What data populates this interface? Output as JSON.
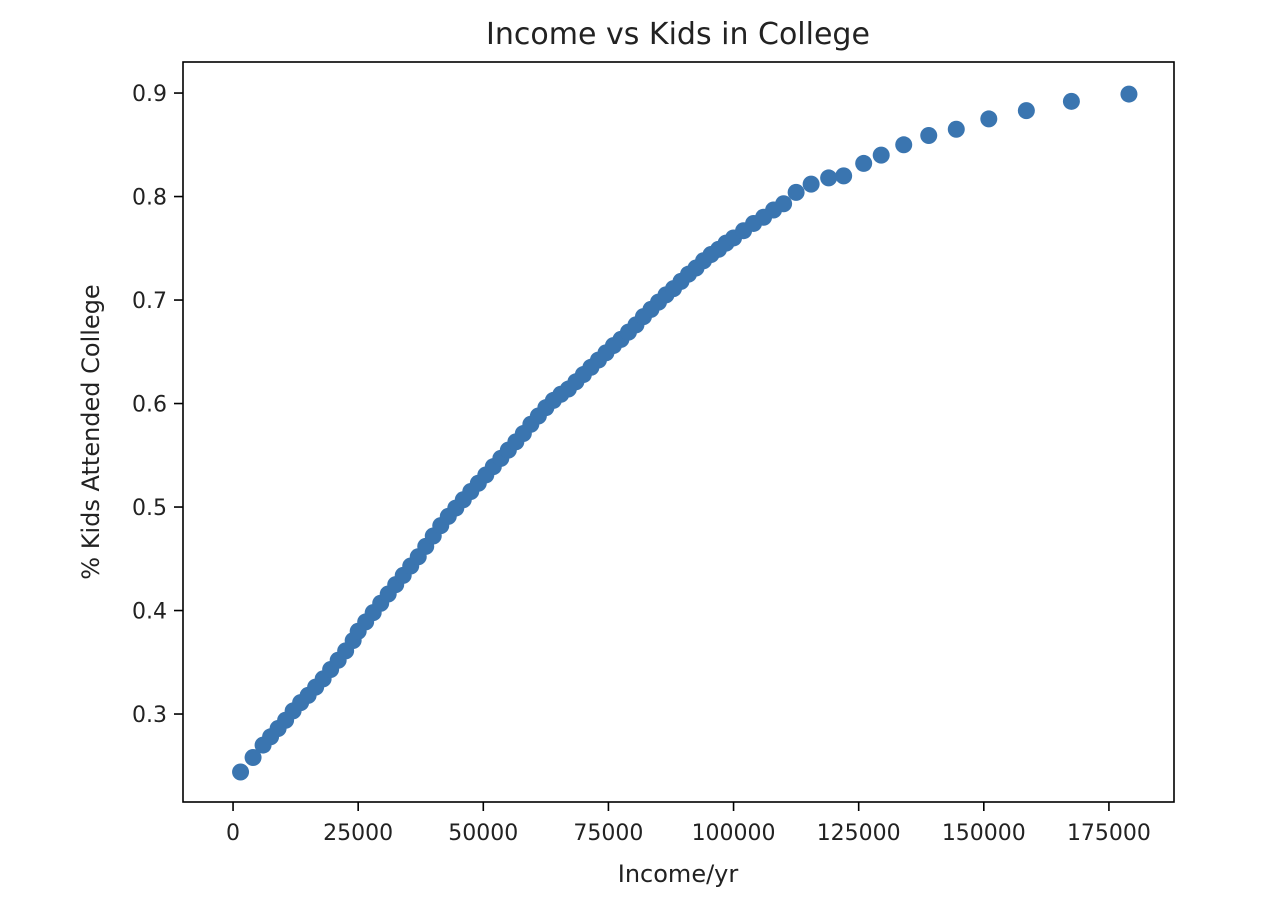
{
  "chart_data": {
    "type": "scatter",
    "title": "Income vs Kids in College",
    "xlabel": "Income/yr",
    "ylabel": "% Kids Attended College",
    "xlim": [
      -10000,
      188000
    ],
    "ylim": [
      0.215,
      0.93
    ],
    "xticks": [
      {
        "value": 0,
        "label": "0"
      },
      {
        "value": 25000,
        "label": "25000"
      },
      {
        "value": 50000,
        "label": "50000"
      },
      {
        "value": 75000,
        "label": "75000"
      },
      {
        "value": 100000,
        "label": "100000"
      },
      {
        "value": 125000,
        "label": "125000"
      },
      {
        "value": 150000,
        "label": "150000"
      },
      {
        "value": 175000,
        "label": "175000"
      }
    ],
    "yticks": [
      {
        "value": 0.3,
        "label": "0.3"
      },
      {
        "value": 0.4,
        "label": "0.4"
      },
      {
        "value": 0.5,
        "label": "0.5"
      },
      {
        "value": 0.6,
        "label": "0.6"
      },
      {
        "value": 0.7,
        "label": "0.7"
      },
      {
        "value": 0.8,
        "label": "0.8"
      },
      {
        "value": 0.9,
        "label": "0.9"
      }
    ],
    "grid": false,
    "marker_color": "#3a75b0",
    "points": [
      [
        1500,
        0.244
      ],
      [
        4000,
        0.258
      ],
      [
        6000,
        0.27
      ],
      [
        7500,
        0.278
      ],
      [
        9000,
        0.286
      ],
      [
        10500,
        0.294
      ],
      [
        12000,
        0.303
      ],
      [
        13500,
        0.311
      ],
      [
        15000,
        0.318
      ],
      [
        16500,
        0.326
      ],
      [
        18000,
        0.334
      ],
      [
        19500,
        0.343
      ],
      [
        21000,
        0.352
      ],
      [
        22500,
        0.361
      ],
      [
        24000,
        0.371
      ],
      [
        25000,
        0.38
      ],
      [
        26500,
        0.389
      ],
      [
        28000,
        0.398
      ],
      [
        29500,
        0.407
      ],
      [
        31000,
        0.416
      ],
      [
        32500,
        0.425
      ],
      [
        34000,
        0.434
      ],
      [
        35500,
        0.443
      ],
      [
        37000,
        0.452
      ],
      [
        38500,
        0.462
      ],
      [
        40000,
        0.472
      ],
      [
        41500,
        0.482
      ],
      [
        43000,
        0.491
      ],
      [
        44500,
        0.499
      ],
      [
        46000,
        0.507
      ],
      [
        47500,
        0.515
      ],
      [
        49000,
        0.523
      ],
      [
        50500,
        0.531
      ],
      [
        52000,
        0.539
      ],
      [
        53500,
        0.547
      ],
      [
        55000,
        0.555
      ],
      [
        56500,
        0.563
      ],
      [
        58000,
        0.571
      ],
      [
        59500,
        0.58
      ],
      [
        61000,
        0.588
      ],
      [
        62500,
        0.596
      ],
      [
        64000,
        0.603
      ],
      [
        65500,
        0.609
      ],
      [
        67000,
        0.614
      ],
      [
        68500,
        0.621
      ],
      [
        70000,
        0.628
      ],
      [
        71500,
        0.635
      ],
      [
        73000,
        0.642
      ],
      [
        74500,
        0.649
      ],
      [
        76000,
        0.656
      ],
      [
        77500,
        0.662
      ],
      [
        79000,
        0.669
      ],
      [
        80500,
        0.676
      ],
      [
        82000,
        0.684
      ],
      [
        83500,
        0.691
      ],
      [
        85000,
        0.698
      ],
      [
        86500,
        0.705
      ],
      [
        88000,
        0.711
      ],
      [
        89500,
        0.718
      ],
      [
        91000,
        0.725
      ],
      [
        92500,
        0.731
      ],
      [
        94000,
        0.738
      ],
      [
        95500,
        0.744
      ],
      [
        97000,
        0.749
      ],
      [
        98500,
        0.755
      ],
      [
        100000,
        0.76
      ],
      [
        102000,
        0.767
      ],
      [
        104000,
        0.774
      ],
      [
        106000,
        0.78
      ],
      [
        108000,
        0.787
      ],
      [
        110000,
        0.793
      ],
      [
        112500,
        0.804
      ],
      [
        115500,
        0.812
      ],
      [
        119000,
        0.818
      ],
      [
        122000,
        0.82
      ],
      [
        126000,
        0.832
      ],
      [
        129500,
        0.84
      ],
      [
        134000,
        0.85
      ],
      [
        139000,
        0.859
      ],
      [
        144500,
        0.865
      ],
      [
        151000,
        0.875
      ],
      [
        158500,
        0.883
      ],
      [
        167500,
        0.892
      ],
      [
        179000,
        0.899
      ]
    ]
  }
}
